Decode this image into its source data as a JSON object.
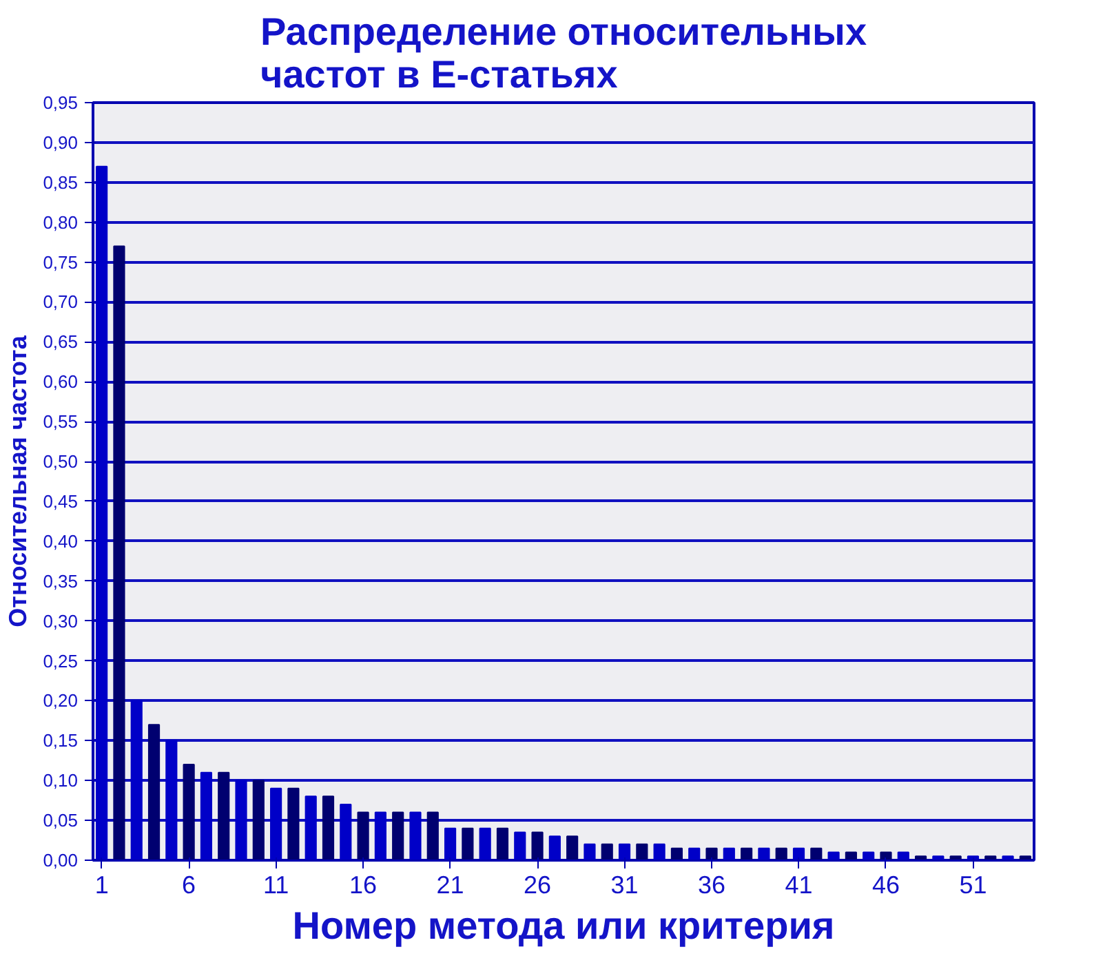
{
  "chart_data": {
    "type": "bar",
    "title": "Распределение относительных\nчастот в Е-статьях",
    "xlabel": "Номер метода или критерия",
    "ylabel": "Относительная частота",
    "x": [
      1,
      2,
      3,
      4,
      5,
      6,
      7,
      8,
      9,
      10,
      11,
      12,
      13,
      14,
      15,
      16,
      17,
      18,
      19,
      20,
      21,
      22,
      23,
      24,
      25,
      26,
      27,
      28,
      29,
      30,
      31,
      32,
      33,
      34,
      35,
      36,
      37,
      38,
      39,
      40,
      41,
      42,
      43,
      44,
      45,
      46,
      47,
      48,
      49,
      50,
      51,
      52,
      53,
      54
    ],
    "values": [
      0.87,
      0.77,
      0.2,
      0.17,
      0.15,
      0.12,
      0.11,
      0.11,
      0.1,
      0.1,
      0.09,
      0.09,
      0.08,
      0.08,
      0.07,
      0.06,
      0.06,
      0.06,
      0.06,
      0.06,
      0.04,
      0.04,
      0.04,
      0.04,
      0.035,
      0.035,
      0.03,
      0.03,
      0.02,
      0.02,
      0.02,
      0.02,
      0.02,
      0.015,
      0.015,
      0.015,
      0.015,
      0.015,
      0.015,
      0.015,
      0.015,
      0.015,
      0.01,
      0.01,
      0.01,
      0.01,
      0.01,
      0.005,
      0.005,
      0.005,
      0.005,
      0.005,
      0.005,
      0.005
    ],
    "colors": [
      "#0000c8",
      "#000070",
      "#0000c8",
      "#000070",
      "#0000c8",
      "#000070",
      "#0000c8",
      "#000070",
      "#0000c8",
      "#000070",
      "#0000c8",
      "#000070",
      "#0000c8",
      "#000070",
      "#0000c8",
      "#000070",
      "#0000c8",
      "#000070",
      "#0000c8",
      "#000070",
      "#0000c8",
      "#000070",
      "#0000c8",
      "#000070",
      "#0000c8",
      "#000070",
      "#0000c8",
      "#000070",
      "#0000c8",
      "#000070",
      "#0000c8",
      "#000070",
      "#0000c8",
      "#000070",
      "#0000c8",
      "#000070",
      "#0000c8",
      "#000070",
      "#0000c8",
      "#000070",
      "#0000c8",
      "#000070",
      "#0000c8",
      "#000070",
      "#0000c8",
      "#000070",
      "#0000c8",
      "#000070",
      "#0000c8",
      "#000070",
      "#0000c8",
      "#000070",
      "#0000c8",
      "#000070"
    ],
    "xlim": [
      0.5,
      54.5
    ],
    "xticks": [
      1,
      6,
      11,
      16,
      21,
      26,
      31,
      36,
      41,
      46,
      51
    ],
    "ylim": [
      0,
      0.95
    ],
    "yticks": [
      {
        "value": 0,
        "label": "0,00"
      },
      {
        "value": 0.05,
        "label": "0,05"
      },
      {
        "value": 0.1,
        "label": "0,10"
      },
      {
        "value": 0.15,
        "label": "0,15"
      },
      {
        "value": 0.2,
        "label": "0,20"
      },
      {
        "value": 0.25,
        "label": "0,25"
      },
      {
        "value": 0.3,
        "label": "0,30"
      },
      {
        "value": 0.35,
        "label": "0,35"
      },
      {
        "value": 0.4,
        "label": "0,40"
      },
      {
        "value": 0.45,
        "label": "0,45"
      },
      {
        "value": 0.5,
        "label": "0,50"
      },
      {
        "value": 0.55,
        "label": "0,55"
      },
      {
        "value": 0.6,
        "label": "0,60"
      },
      {
        "value": 0.65,
        "label": "0,65"
      },
      {
        "value": 0.7,
        "label": "0,70"
      },
      {
        "value": 0.75,
        "label": "0,75"
      },
      {
        "value": 0.8,
        "label": "0,80"
      },
      {
        "value": 0.85,
        "label": "0,85"
      },
      {
        "value": 0.9,
        "label": "0,90"
      },
      {
        "value": 0.95,
        "label": "0,95"
      }
    ],
    "grid": "y"
  }
}
